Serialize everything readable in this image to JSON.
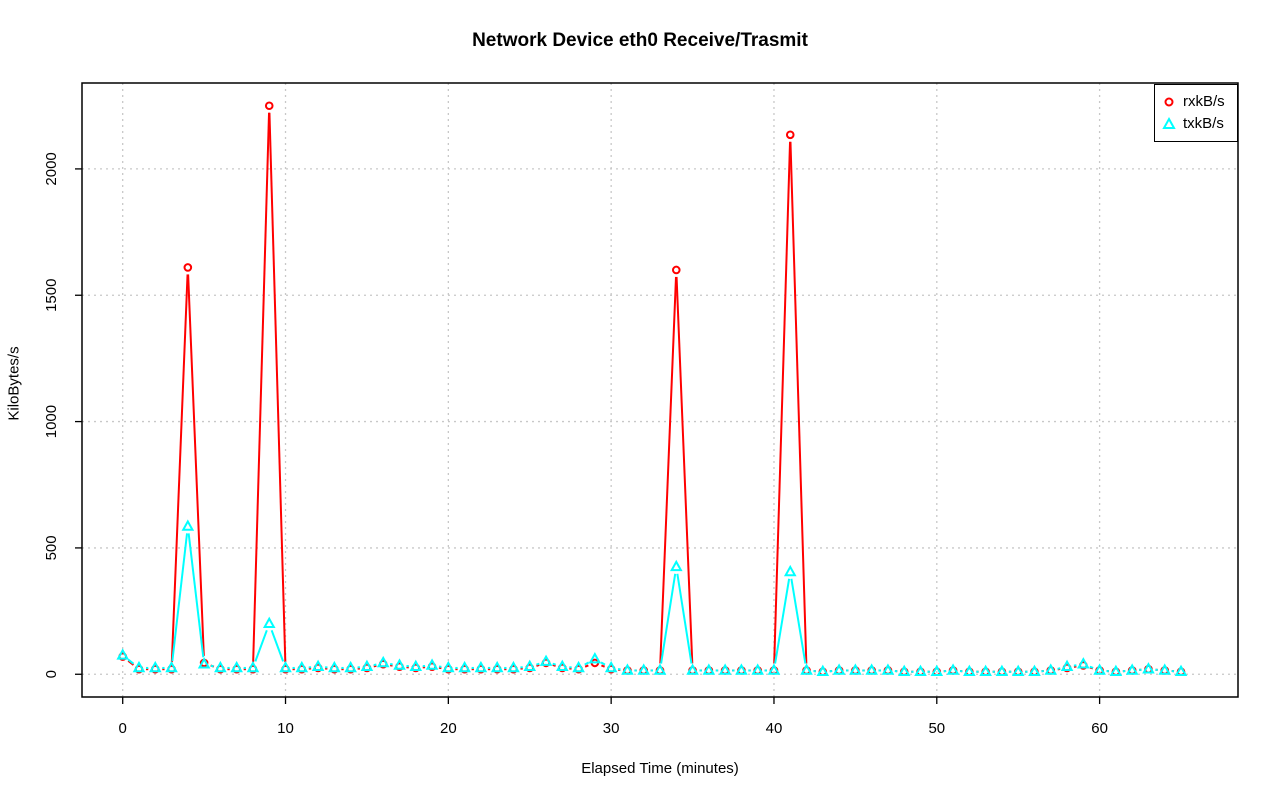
{
  "chart_data": {
    "type": "line",
    "title": "Network Device eth0 Receive/Trasmit",
    "xlabel": "Elapsed Time (minutes)",
    "ylabel": "KiloBytes/s",
    "xlim": [
      -2.5,
      68.5
    ],
    "ylim": [
      -90,
      2340
    ],
    "xticks": [
      0,
      10,
      20,
      30,
      40,
      50,
      60
    ],
    "yticks": [
      0,
      500,
      1000,
      1500,
      2000
    ],
    "grid": true,
    "legend_position": "top-right",
    "x": [
      0,
      1,
      2,
      3,
      4,
      5,
      6,
      7,
      8,
      9,
      10,
      11,
      12,
      13,
      14,
      15,
      16,
      17,
      18,
      19,
      20,
      21,
      22,
      23,
      24,
      25,
      26,
      27,
      28,
      29,
      30,
      31,
      32,
      33,
      34,
      35,
      36,
      37,
      38,
      39,
      40,
      41,
      42,
      43,
      44,
      45,
      46,
      47,
      48,
      49,
      50,
      51,
      52,
      53,
      54,
      55,
      56,
      57,
      58,
      59,
      60,
      61,
      62,
      63,
      64,
      65
    ],
    "series": [
      {
        "name": "rxkB/s",
        "color": "#ff0000",
        "marker": "circle",
        "values": [
          70,
          20,
          20,
          20,
          1610,
          45,
          20,
          20,
          20,
          2250,
          20,
          20,
          25,
          20,
          20,
          25,
          40,
          30,
          25,
          30,
          20,
          20,
          20,
          20,
          20,
          25,
          45,
          25,
          20,
          45,
          20,
          15,
          15,
          15,
          1600,
          15,
          15,
          15,
          15,
          15,
          15,
          2135,
          15,
          10,
          15,
          15,
          15,
          15,
          10,
          10,
          10,
          15,
          10,
          10,
          10,
          10,
          10,
          15,
          25,
          35,
          15,
          10,
          15,
          20,
          15,
          10
        ]
      },
      {
        "name": "txkB/s",
        "color": "#00ffff",
        "marker": "triangle",
        "values": [
          75,
          25,
          25,
          25,
          585,
          40,
          25,
          25,
          25,
          200,
          25,
          25,
          30,
          25,
          25,
          30,
          45,
          35,
          30,
          35,
          25,
          25,
          25,
          25,
          25,
          30,
          50,
          30,
          25,
          60,
          25,
          15,
          15,
          15,
          425,
          15,
          15,
          15,
          15,
          15,
          15,
          405,
          15,
          10,
          15,
          15,
          15,
          15,
          10,
          10,
          10,
          15,
          10,
          10,
          10,
          10,
          10,
          15,
          30,
          40,
          15,
          10,
          15,
          20,
          15,
          10
        ]
      }
    ]
  }
}
